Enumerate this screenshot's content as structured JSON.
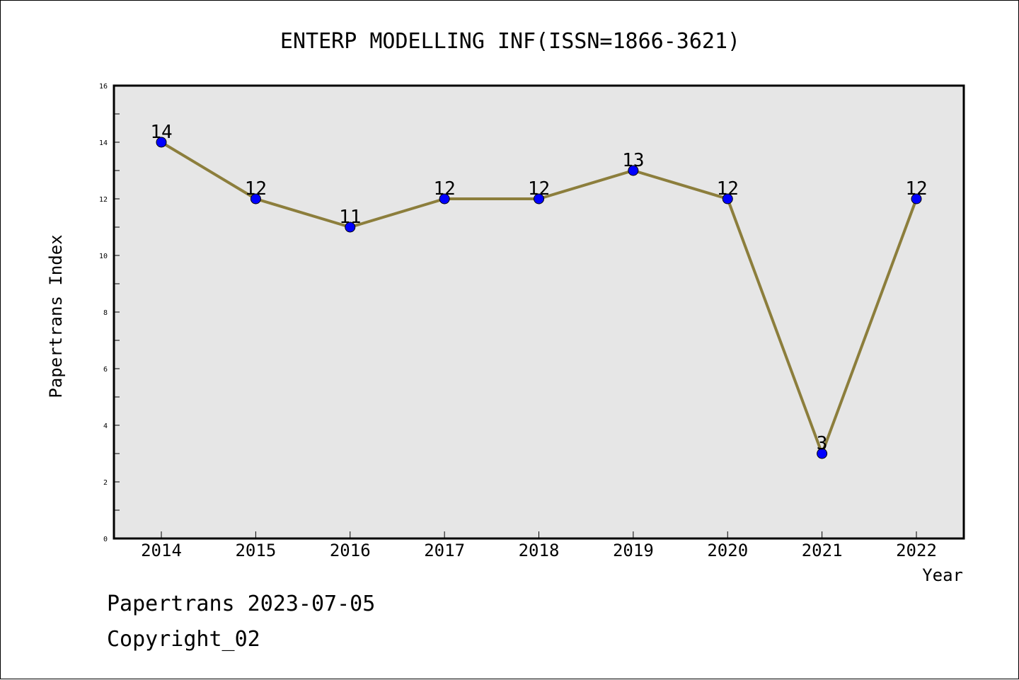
{
  "chart_data": {
    "type": "line",
    "title": "ENTERP MODELLING INF(ISSN=1866-3621)",
    "xlabel": "Year",
    "ylabel": "Papertrans Index",
    "categories": [
      "2014",
      "2015",
      "2016",
      "2017",
      "2018",
      "2019",
      "2020",
      "2021",
      "2022"
    ],
    "series": [
      {
        "values": [
          14,
          12,
          11,
          12,
          12,
          13,
          12,
          3,
          12
        ]
      }
    ],
    "ylim": [
      0,
      16
    ],
    "yticks": [
      "0",
      "2",
      "4",
      "6",
      "8",
      "10",
      "12",
      "14",
      "16"
    ],
    "grid": false,
    "data_labels": true,
    "colors": {
      "line": "#8c7e3c",
      "marker": "#0000ff",
      "plot_bg": "#e6e6e6"
    }
  },
  "footer": {
    "date_line": "Papertrans 2023-07-05",
    "copyright_line": "Copyright_02"
  }
}
